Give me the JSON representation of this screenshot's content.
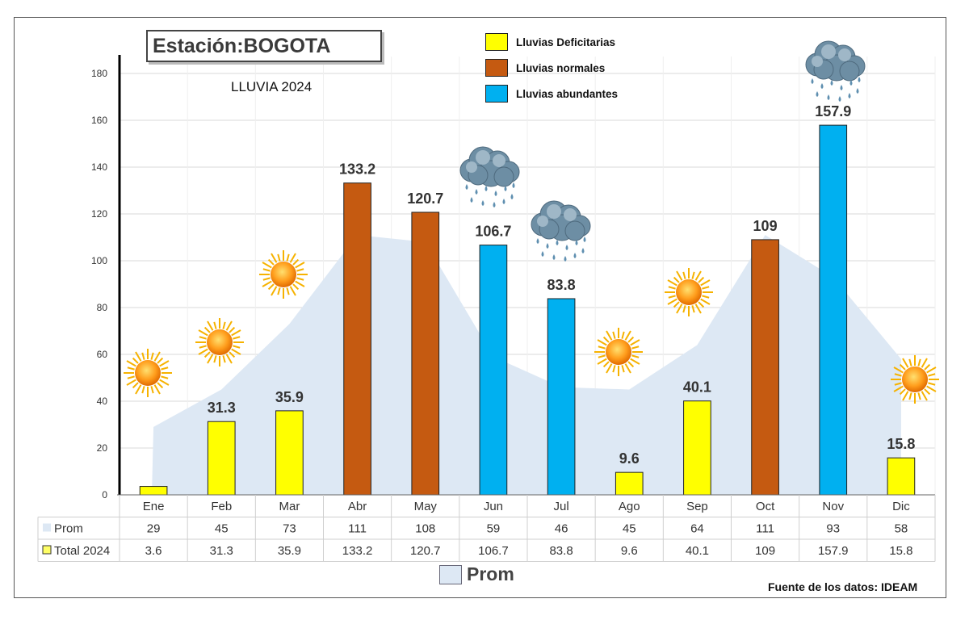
{
  "station": {
    "label": "Estación:",
    "name": "BOGOTA"
  },
  "chart_data": {
    "type": "bar",
    "title": "LLUVIA 2024",
    "categories": [
      "Ene",
      "Feb",
      "Mar",
      "Abr",
      "May",
      "Jun",
      "Jul",
      "Ago",
      "Sep",
      "Oct",
      "Nov",
      "Dic"
    ],
    "series": [
      {
        "name": "Prom",
        "type": "area",
        "color": "#dde8f4",
        "values": [
          29,
          45,
          73,
          111,
          108,
          59,
          46,
          45,
          64,
          111,
          93,
          58
        ]
      },
      {
        "name": "Total 2024",
        "type": "bar",
        "values": [
          3.6,
          31.3,
          35.9,
          133.2,
          120.7,
          106.7,
          83.8,
          9.6,
          40.1,
          109,
          157.9,
          15.8
        ],
        "value_labels": [
          "",
          "31.3",
          "35.9",
          "133.2",
          "120.7",
          "106.7",
          "83.8",
          "9.6",
          "40.1",
          "109",
          "157.9",
          "15.8"
        ],
        "classes": [
          "def",
          "def",
          "def",
          "normal",
          "normal",
          "abund",
          "abund",
          "def",
          "def",
          "normal",
          "abund",
          "def"
        ]
      }
    ],
    "category_colors": {
      "def": "#ffff00",
      "normal": "#c55a11",
      "abund": "#00b0f0"
    },
    "legend": [
      {
        "key": "def",
        "label": "Lluvias Deficitarias"
      },
      {
        "key": "normal",
        "label": "Lluvias normales"
      },
      {
        "key": "abund",
        "label": "Lluvias abundantes"
      }
    ],
    "yticks": [
      "0",
      "20",
      "40",
      "60",
      "80",
      "100",
      "120",
      "140",
      "160",
      "180"
    ],
    "ylim": [
      0,
      190
    ],
    "grid": true,
    "table": {
      "rows": [
        {
          "label": "Prom",
          "values": [
            "29",
            "45",
            "73",
            "111",
            "108",
            "59",
            "46",
            "45",
            "64",
            "111",
            "93",
            "58"
          ]
        },
        {
          "label": "Total 2024",
          "values": [
            "3.6",
            "31.3",
            "35.9",
            "133.2",
            "120.7",
            "106.7",
            "83.8",
            "9.6",
            "40.1",
            "109",
            "157.9",
            "15.8"
          ]
        }
      ]
    },
    "icons": [
      {
        "month": "Ene",
        "icon": "sun-icon"
      },
      {
        "month": "Feb",
        "icon": "sun-icon"
      },
      {
        "month": "Mar",
        "icon": "sun-icon"
      },
      {
        "month": "Jun",
        "icon": "rain-cloud-icon"
      },
      {
        "month": "Jul",
        "icon": "rain-cloud-icon"
      },
      {
        "month": "Ago",
        "icon": "sun-icon"
      },
      {
        "month": "Sep",
        "icon": "sun-icon"
      },
      {
        "month": "Nov",
        "icon": "rain-cloud-icon"
      },
      {
        "month": "Dic",
        "icon": "sun-icon"
      }
    ]
  },
  "footer": {
    "legend_label": "Prom",
    "source": "Fuente de los datos: IDEAM"
  }
}
